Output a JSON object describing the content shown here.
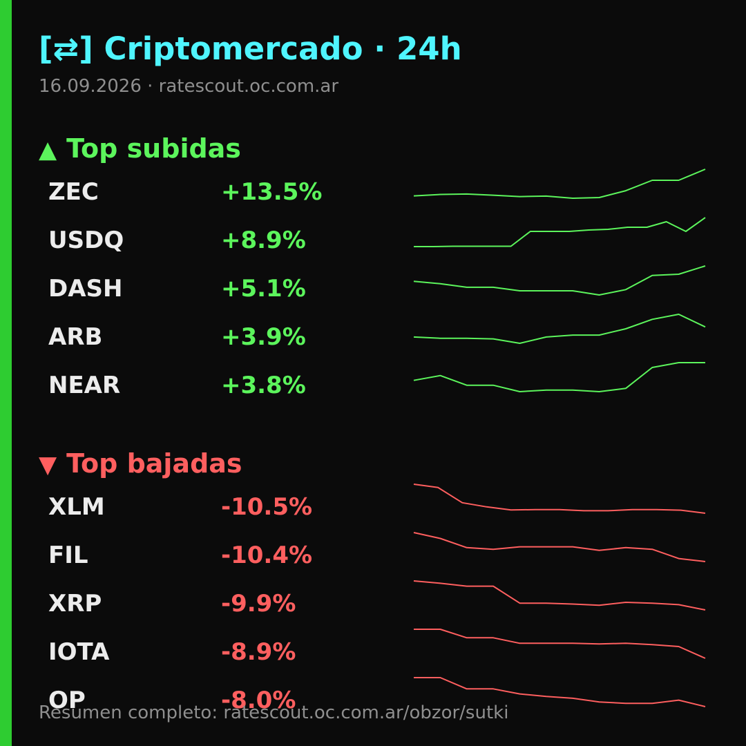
{
  "header": {
    "title": "[⇄] Criptomercado · 24h",
    "subtitle": "16.09.2026 · ratescout.oc.com.ar"
  },
  "colors": {
    "accent_bar": "#2ecc31",
    "title": "#4ff5ff",
    "up": "#5cf55c",
    "down": "#ff5f5f"
  },
  "gainers": {
    "heading": "Top subidas",
    "icon": "triangle-up-icon",
    "items": [
      {
        "symbol": "ZEC",
        "change": "+13.5%",
        "trend": [
          1.0,
          1.6,
          1.8,
          1.3,
          0.7,
          0.9,
          0.0,
          0.3,
          3.2,
          7.6,
          7.6,
          12.3
        ]
      },
      {
        "symbol": "USDQ",
        "change": "+8.9%",
        "trend": [
          0,
          0,
          0.05,
          0.05,
          0.05,
          0.05,
          2.2,
          2.2,
          2.2,
          2.4,
          2.5,
          2.8,
          2.8,
          3.6,
          2.2,
          4.2
        ]
      },
      {
        "symbol": "DASH",
        "change": "+5.1%",
        "trend": [
          2.3,
          1.9,
          1.3,
          1.3,
          0.7,
          0.7,
          0.7,
          0.0,
          0.9,
          3.3,
          3.5,
          4.9
        ]
      },
      {
        "symbol": "ARB",
        "change": "+3.9%",
        "trend": [
          1.0,
          0.8,
          0.8,
          0.7,
          0.0,
          1.0,
          1.3,
          1.3,
          2.3,
          3.8,
          4.6,
          2.6
        ]
      },
      {
        "symbol": "NEAR",
        "change": "+3.8%",
        "trend": [
          0.7,
          1.0,
          0.4,
          0.4,
          0.0,
          0.1,
          0.1,
          0.0,
          0.2,
          1.5,
          1.8,
          1.8
        ]
      }
    ]
  },
  "losers": {
    "heading": "Top bajadas",
    "icon": "triangle-down-icon",
    "items": [
      {
        "symbol": "XLM",
        "change": "-10.5%",
        "trend": [
          10.5,
          9.3,
          3.8,
          2.3,
          1.2,
          1.3,
          1.3,
          0.9,
          0.9,
          1.3,
          1.3,
          1.1,
          0.0
        ]
      },
      {
        "symbol": "FIL",
        "change": "-10.4%",
        "trend": [
          10.4,
          8.3,
          5.0,
          4.4,
          5.3,
          5.3,
          5.3,
          4.0,
          5.0,
          4.4,
          1.1,
          0.0
        ]
      },
      {
        "symbol": "XRP",
        "change": "-9.9%",
        "trend": [
          9.9,
          9.1,
          8.1,
          8.1,
          2.3,
          2.3,
          2.0,
          1.6,
          2.6,
          2.3,
          1.8,
          0.0
        ]
      },
      {
        "symbol": "IOTA",
        "change": "-8.9%",
        "trend": [
          8.9,
          8.9,
          6.3,
          6.3,
          4.6,
          4.6,
          4.6,
          4.4,
          4.6,
          4.2,
          3.6,
          0.0
        ]
      },
      {
        "symbol": "OP",
        "change": "-8.0%",
        "trend": [
          8.0,
          8.0,
          4.9,
          4.9,
          3.5,
          2.8,
          2.3,
          1.3,
          0.9,
          0.9,
          1.8,
          0.0
        ]
      }
    ]
  },
  "footer": {
    "text": "Resumen completo: ratescout.oc.com.ar/obzor/sutki"
  }
}
